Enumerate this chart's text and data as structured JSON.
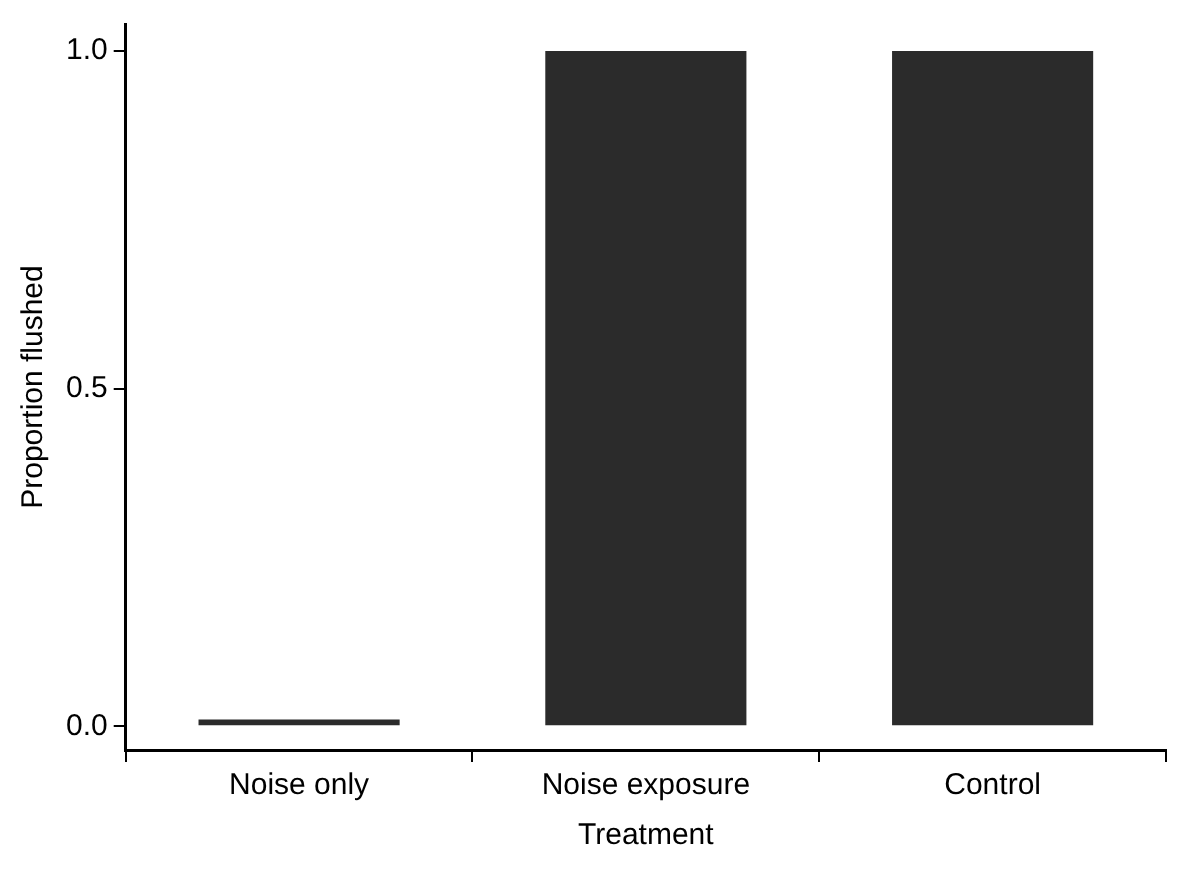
{
  "chart_data": {
    "type": "bar",
    "xlabel": "Treatment",
    "ylabel": "Proportion flushed",
    "categories": [
      "Noise only",
      "Noise exposure",
      "Control"
    ],
    "values": [
      0.01,
      1,
      1
    ],
    "color": "#2b2b2b",
    "ylim": [
      -0.035,
      1.04
    ],
    "yticks": [
      {
        "value": 0,
        "label": "0.0"
      },
      {
        "value": 0.5,
        "label": "0.5"
      },
      {
        "value": 1,
        "label": "1.0"
      }
    ],
    "grid": false,
    "legend": false
  }
}
